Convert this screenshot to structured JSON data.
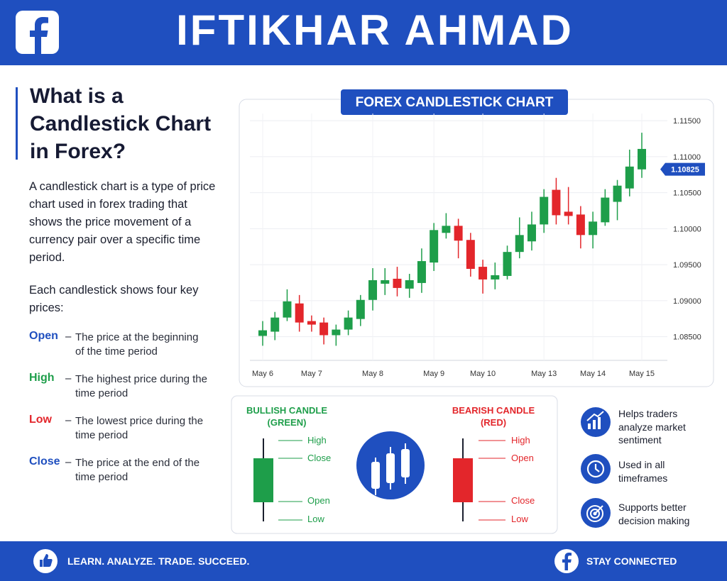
{
  "header": {
    "title": "IFTIKHAR AHMAD"
  },
  "intro": {
    "heading": "What is a Candlestick Chart in Forex?",
    "paragraph": "A candlestick chart is a type of price chart used in forex trading that shows the price movement of a currency pair over a specific time period.",
    "subheading": "Each candlestick shows four key prices:",
    "separator": "–",
    "terms": [
      {
        "term": "Open",
        "description": "The price at the beginning of the time period"
      },
      {
        "term": "High",
        "description": "The highest price during the time period"
      },
      {
        "term": "Low",
        "description": "The lowest price during the time period"
      },
      {
        "term": "Close",
        "description": "The price at the end of the time period"
      }
    ]
  },
  "chart_data": {
    "type": "candlestick",
    "title": "FOREX CANDLESTICK CHART",
    "categories": [
      "May 6",
      null,
      null,
      null,
      "May 7",
      null,
      null,
      null,
      null,
      "May 8",
      null,
      null,
      null,
      null,
      "May 9",
      null,
      null,
      null,
      "May 10",
      null,
      null,
      null,
      null,
      "May 13",
      null,
      null,
      null,
      "May 14",
      null,
      null,
      null,
      "May 15"
    ],
    "open": [
      1.08511,
      1.0857,
      1.08766,
      1.08962,
      1.08717,
      1.08697,
      1.08521,
      1.08599,
      1.08746,
      1.09011,
      1.09236,
      1.09305,
      1.09168,
      1.09246,
      1.0953,
      1.09942,
      1.1004,
      1.09844,
      1.09471,
      1.09295,
      1.09344,
      1.09677,
      1.09824,
      1.10059,
      1.1054,
      1.10236,
      1.10197,
      1.09912,
      1.10089,
      1.10373,
      1.10559,
      1.10824
    ],
    "high": [
      1.08717,
      1.08844,
      1.09158,
      1.09079,
      1.08795,
      1.08766,
      1.08668,
      1.08864,
      1.09079,
      1.09452,
      1.09452,
      1.09471,
      1.09373,
      1.09726,
      1.10079,
      1.10216,
      1.10138,
      1.09942,
      1.09569,
      1.0953,
      1.09765,
      1.10157,
      1.10236,
      1.10549,
      1.10706,
      1.10579,
      1.10314,
      1.10236,
      1.10549,
      1.10677,
      1.11098,
      1.11333
    ],
    "low": [
      1.08374,
      1.08452,
      1.08717,
      1.0857,
      1.0857,
      1.08393,
      1.08374,
      1.08521,
      1.08648,
      1.08864,
      1.09079,
      1.0906,
      1.0904,
      1.09109,
      1.09413,
      1.09863,
      1.09589,
      1.09334,
      1.09099,
      1.09158,
      1.09295,
      1.09589,
      1.09697,
      1.09942,
      1.10059,
      1.10059,
      1.09726,
      1.09726,
      1.1004,
      1.10118,
      1.10449,
      1.10706
    ],
    "close": [
      1.08589,
      1.08766,
      1.08991,
      1.08697,
      1.08668,
      1.08521,
      1.08599,
      1.08766,
      1.09011,
      1.09285,
      1.09285,
      1.09177,
      1.09285,
      1.0955,
      1.09981,
      1.1004,
      1.09834,
      1.09442,
      1.09295,
      1.09354,
      1.09677,
      1.09912,
      1.10059,
      1.10442,
      1.10187,
      1.10177,
      1.09912,
      1.10099,
      1.10432,
      1.10598,
      1.10863,
      1.11108
    ],
    "up_color": "#1e9e4a",
    "down_color": "#e3262b",
    "ylim": [
      1.0825,
      1.116
    ],
    "yticks": [
      {
        "value": 1.115,
        "label": "1.11500"
      },
      {
        "value": 1.11,
        "label": "1.11000"
      },
      {
        "value": 1.105,
        "label": "1.10500"
      },
      {
        "value": 1.1,
        "label": "1.10000"
      },
      {
        "value": 1.095,
        "label": "1.09500"
      },
      {
        "value": 1.09,
        "label": "1.09000"
      },
      {
        "value": 1.085,
        "label": "1.08500"
      }
    ],
    "grid": true,
    "current_price": 1.10825,
    "current_price_color": "#1f4fbf"
  },
  "bullish": {
    "title": "BULLISH CANDLE",
    "subtitle": "(GREEN)",
    "labels": [
      "High",
      "Close",
      "Open",
      "Low"
    ]
  },
  "bearish": {
    "title": "BEARISH CANDLE",
    "subtitle": "(RED)",
    "labels": [
      "High",
      "Open",
      "Close",
      "Low"
    ]
  },
  "features": [
    "Helps traders analyze market sentiment",
    "Used in all timeframes",
    "Supports better decision making"
  ],
  "footer": {
    "tagline": "LEARN. ANALYZE. TRADE. SUCCEED.",
    "connect": "STAY CONNECTED"
  }
}
